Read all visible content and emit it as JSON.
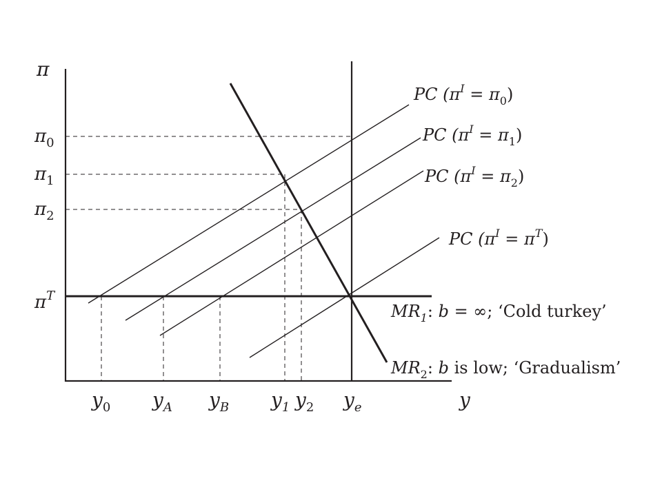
{
  "axes": {
    "y_axis_symbol": "π",
    "x_axis_symbol": "y"
  },
  "y_ticks": [
    {
      "main": "π",
      "sub": "0",
      "sup": ""
    },
    {
      "main": "π",
      "sub": "1",
      "sup": ""
    },
    {
      "main": "π",
      "sub": "2",
      "sup": ""
    },
    {
      "main": "π",
      "sub": "",
      "sup": "T"
    }
  ],
  "x_ticks": [
    {
      "main": "y",
      "sub": "0"
    },
    {
      "main": "y",
      "sub": "A"
    },
    {
      "main": "y",
      "sub": "B"
    },
    {
      "main": "y",
      "sub": "1"
    },
    {
      "main": "y",
      "sub": "2"
    },
    {
      "main": "y",
      "sub": "e"
    }
  ],
  "pc_curves": [
    {
      "prefix": "PC (",
      "pi": "π",
      "pi_sup": "I",
      "eq": " = ",
      "target": "π",
      "target_sub": "0",
      "target_sup": "",
      "close": ")"
    },
    {
      "prefix": "PC (",
      "pi": "π",
      "pi_sup": "I",
      "eq": " = ",
      "target": "π",
      "target_sub": "1",
      "target_sup": "",
      "close": ")"
    },
    {
      "prefix": "PC (",
      "pi": "π",
      "pi_sup": "I",
      "eq": " = ",
      "target": "π",
      "target_sub": "2",
      "target_sup": "",
      "close": ")"
    },
    {
      "prefix": "PC (",
      "pi": "π",
      "pi_sup": "I",
      "eq": " = ",
      "target": "π",
      "target_sub": "",
      "target_sup": "T",
      "close": ")"
    }
  ],
  "mr_curves": [
    {
      "name": "MR",
      "sub": "1",
      "b": "b",
      "cond": " = ∞; ‘Cold turkey’"
    },
    {
      "name": "MR",
      "sub": "2",
      "b": "b",
      "cond": " is low; ‘Gradualism’"
    }
  ]
}
